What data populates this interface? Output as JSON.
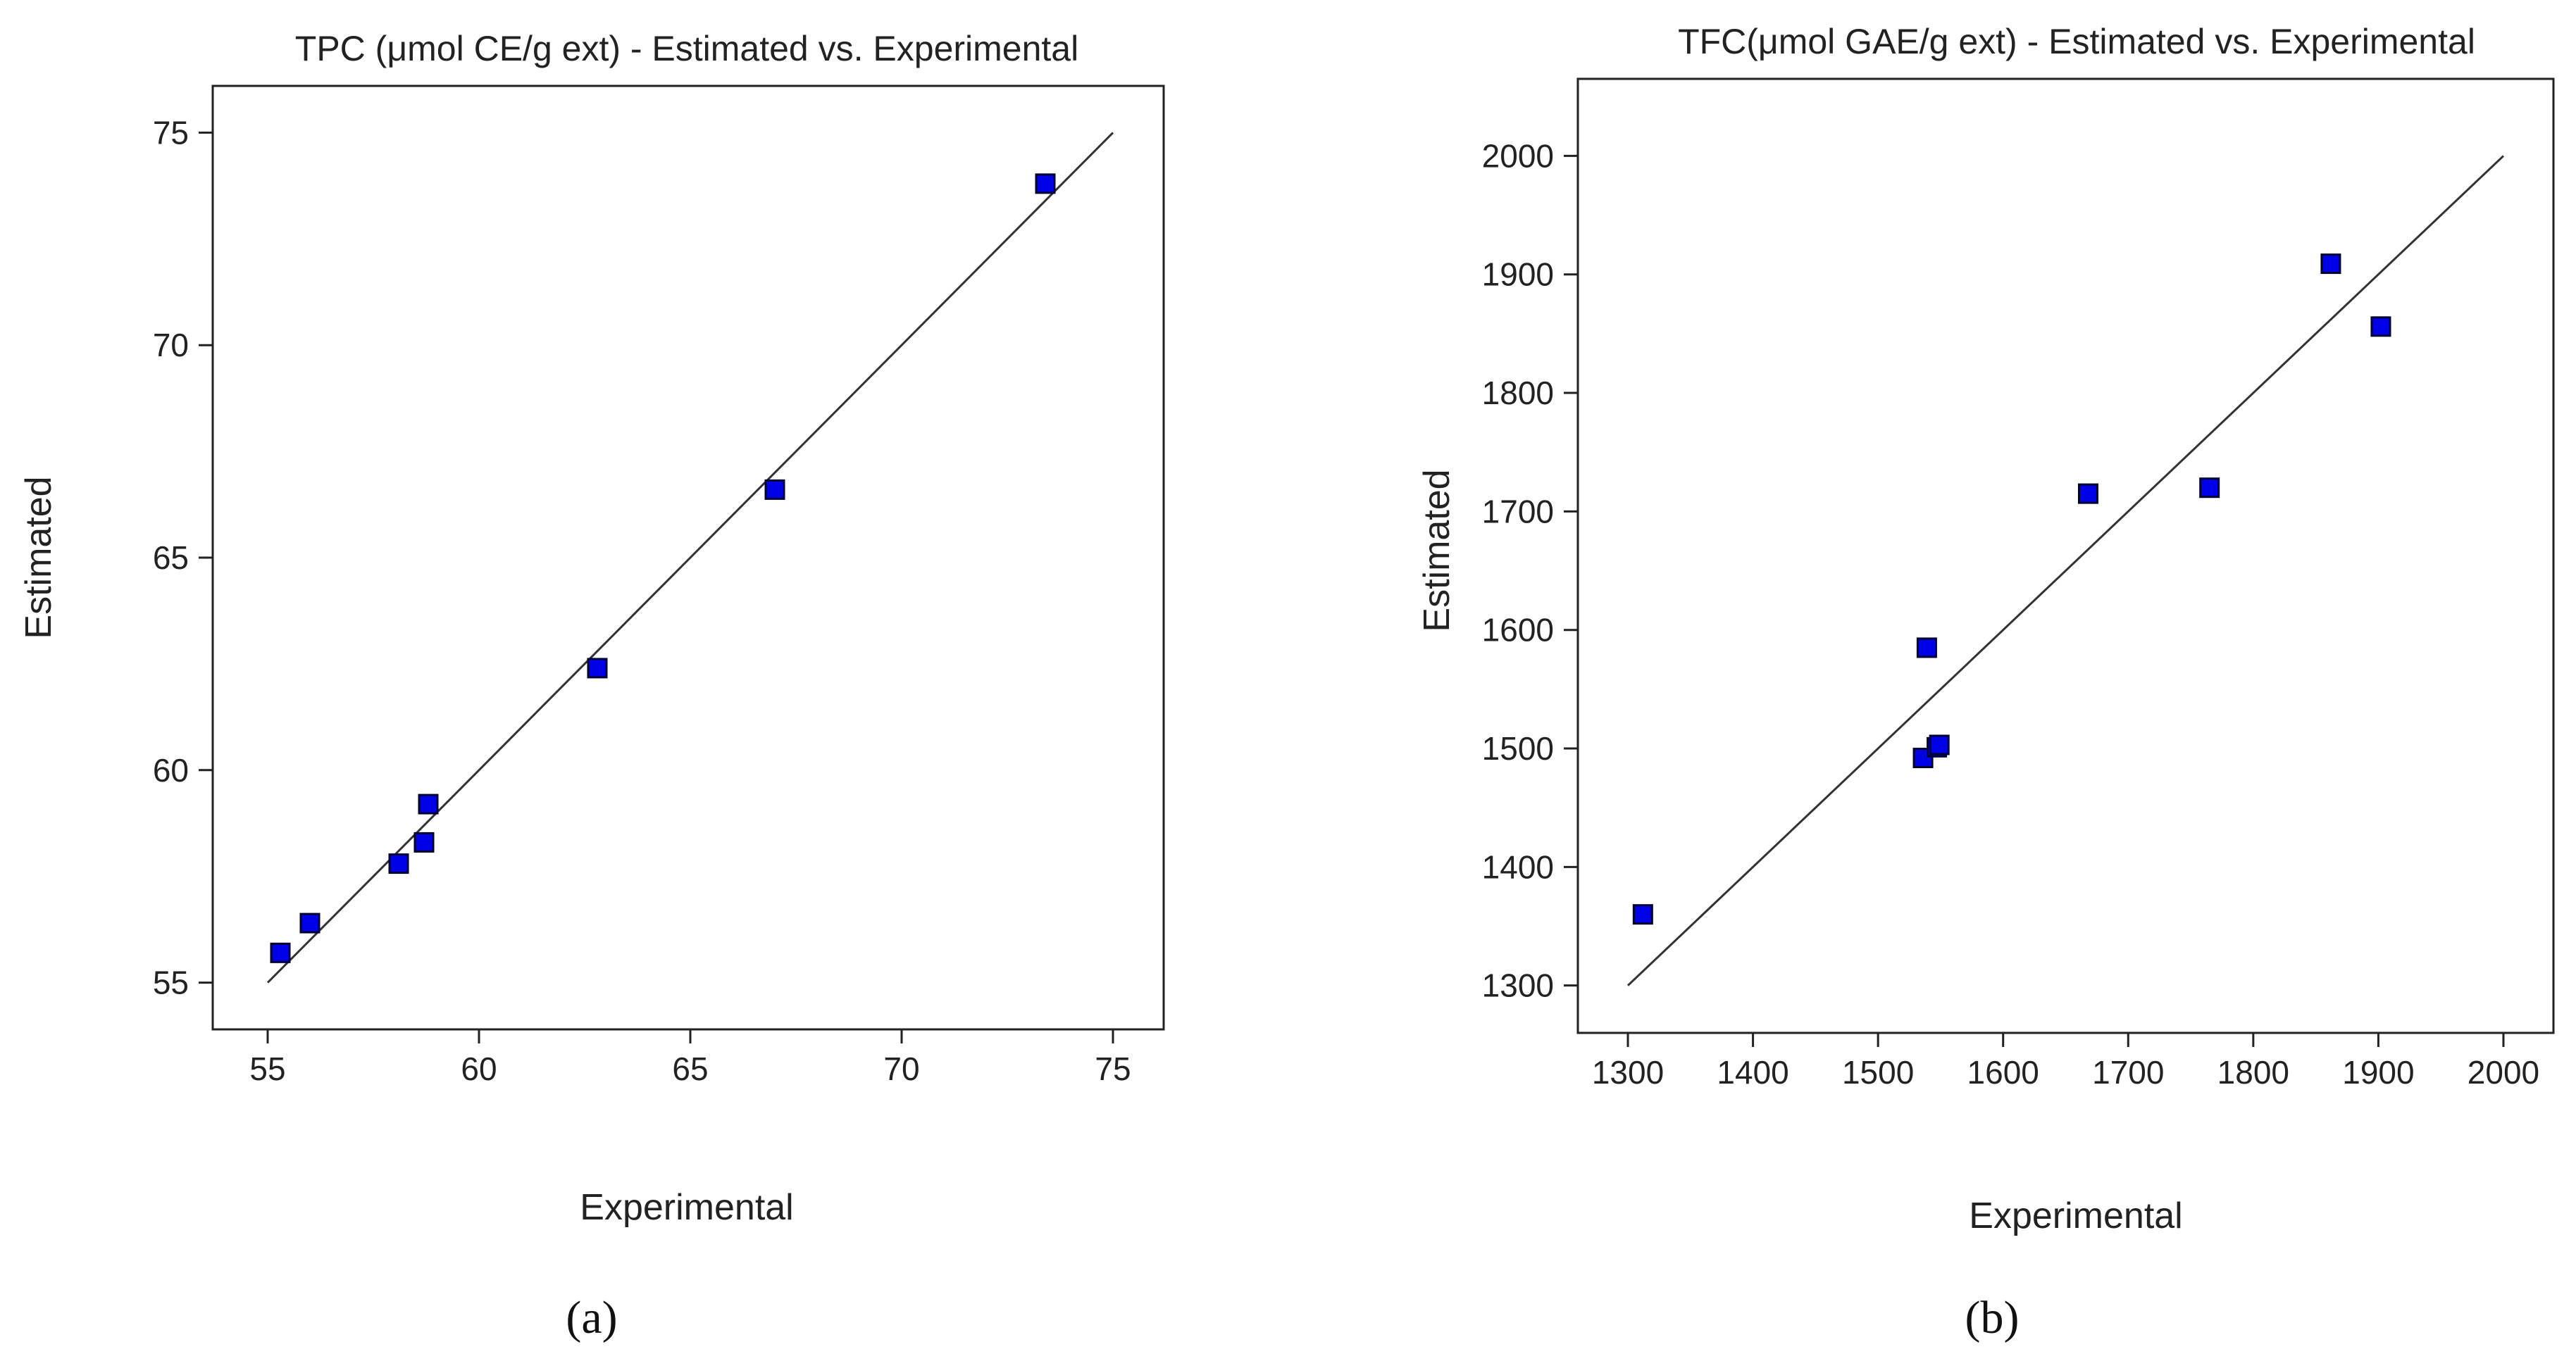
{
  "figure": {
    "panel_a_label": "(a)",
    "panel_b_label": "(b)",
    "colors": {
      "marker_fill": "#0000e6",
      "marker_stroke": "#000033",
      "line": "#333333",
      "axis": "#222222",
      "text": "#222222"
    }
  },
  "chart_data": [
    {
      "type": "scatter",
      "title": "TPC (μmol CE/g ext) - Estimated vs. Experimental",
      "xlabel": "Experimental",
      "ylabel": "Estimated",
      "xlim": [
        53.7,
        76.2
      ],
      "ylim": [
        53.9,
        76.1
      ],
      "xticks": [
        55,
        60,
        65,
        70,
        75
      ],
      "yticks": [
        55,
        60,
        65,
        70,
        75
      ],
      "diagonal": [
        55,
        75
      ],
      "grid": false,
      "points": [
        {
          "x": 55.3,
          "y": 55.7
        },
        {
          "x": 56.0,
          "y": 56.4
        },
        {
          "x": 58.1,
          "y": 57.8
        },
        {
          "x": 58.7,
          "y": 58.3
        },
        {
          "x": 58.8,
          "y": 59.2
        },
        {
          "x": 62.8,
          "y": 62.4
        },
        {
          "x": 67.0,
          "y": 66.6
        },
        {
          "x": 73.4,
          "y": 73.8
        }
      ]
    },
    {
      "type": "scatter",
      "title": "TFC(μmol GAE/g ext) - Estimated vs. Experimental",
      "xlabel": "Experimental",
      "ylabel": "Estimated",
      "xlim": [
        1260,
        2040
      ],
      "ylim": [
        1260,
        2065
      ],
      "xticks": [
        1300,
        1400,
        1500,
        1600,
        1700,
        1800,
        1900,
        2000
      ],
      "yticks": [
        1300,
        1400,
        1500,
        1600,
        1700,
        1800,
        1900,
        2000
      ],
      "diagonal": [
        1300,
        2000
      ],
      "grid": false,
      "points": [
        {
          "x": 1312,
          "y": 1360
        },
        {
          "x": 1536,
          "y": 1492
        },
        {
          "x": 1539,
          "y": 1585
        },
        {
          "x": 1547,
          "y": 1501
        },
        {
          "x": 1549,
          "y": 1503
        },
        {
          "x": 1668,
          "y": 1715
        },
        {
          "x": 1765,
          "y": 1720
        },
        {
          "x": 1862,
          "y": 1909
        },
        {
          "x": 1902,
          "y": 1856
        }
      ]
    }
  ]
}
